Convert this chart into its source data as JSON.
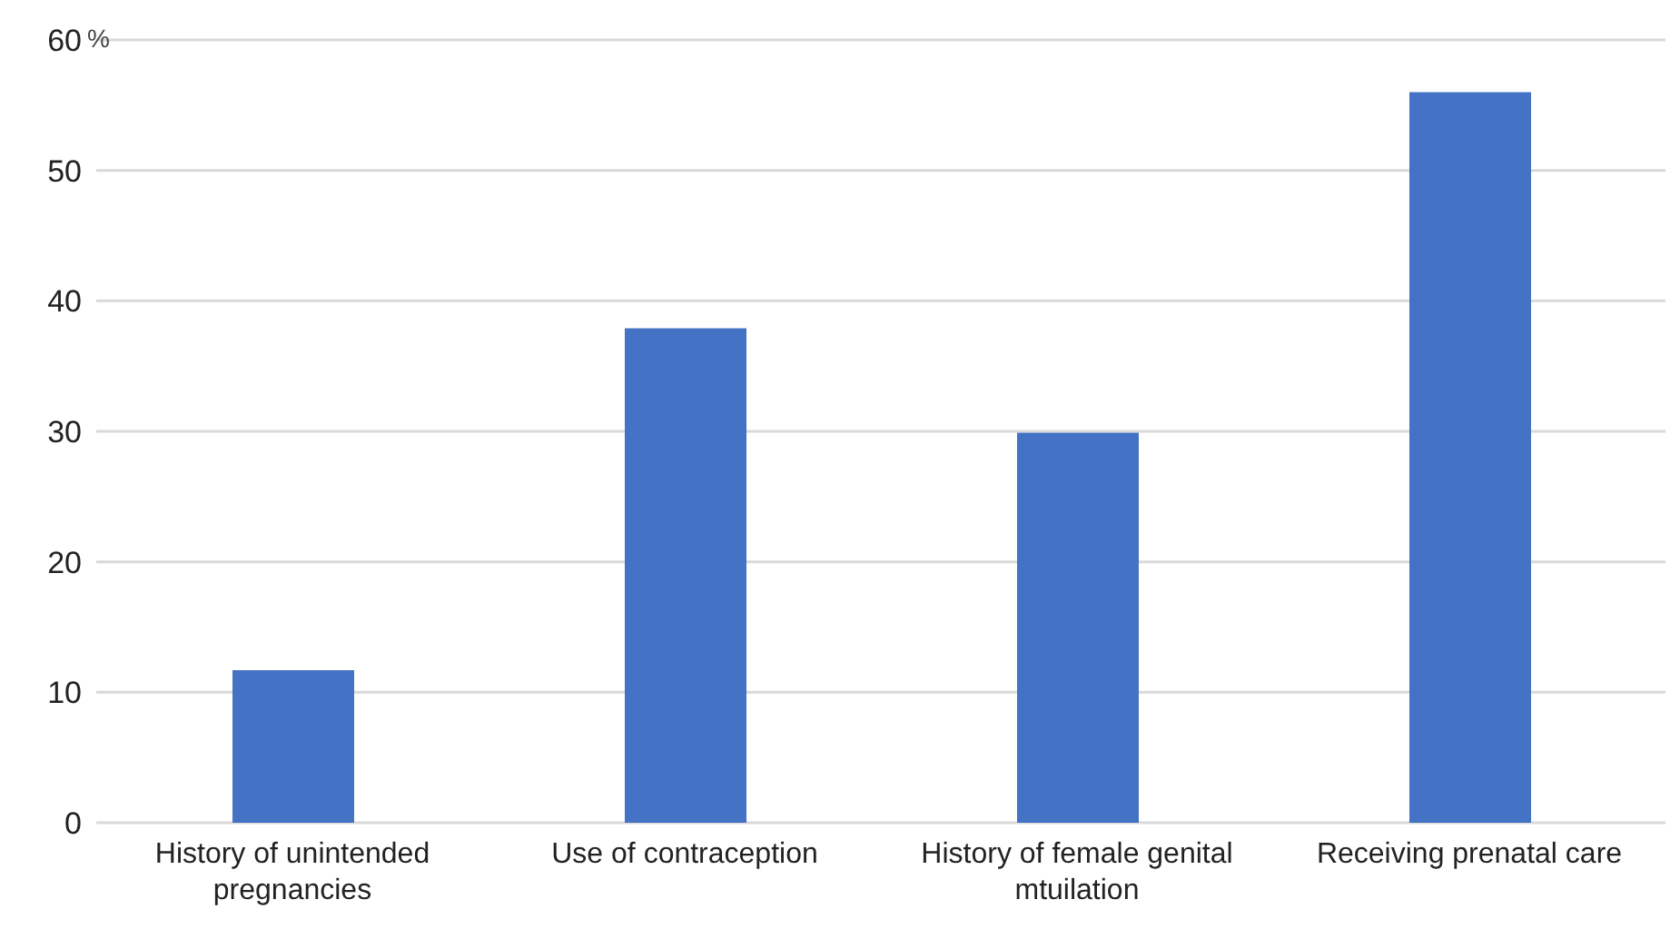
{
  "chart_data": {
    "type": "bar",
    "ylabel": "%",
    "categories": [
      "History of unintended pregnancies",
      "Use of contraception",
      "History of female genital mtuilation",
      "Receiving prenatal care"
    ],
    "values": [
      11.7,
      37.9,
      29.9,
      56.0
    ],
    "color": "#4472c4",
    "ylim": [
      0,
      60
    ],
    "yticks": [
      0,
      10,
      20,
      30,
      40,
      50,
      60
    ],
    "grid": "y"
  }
}
